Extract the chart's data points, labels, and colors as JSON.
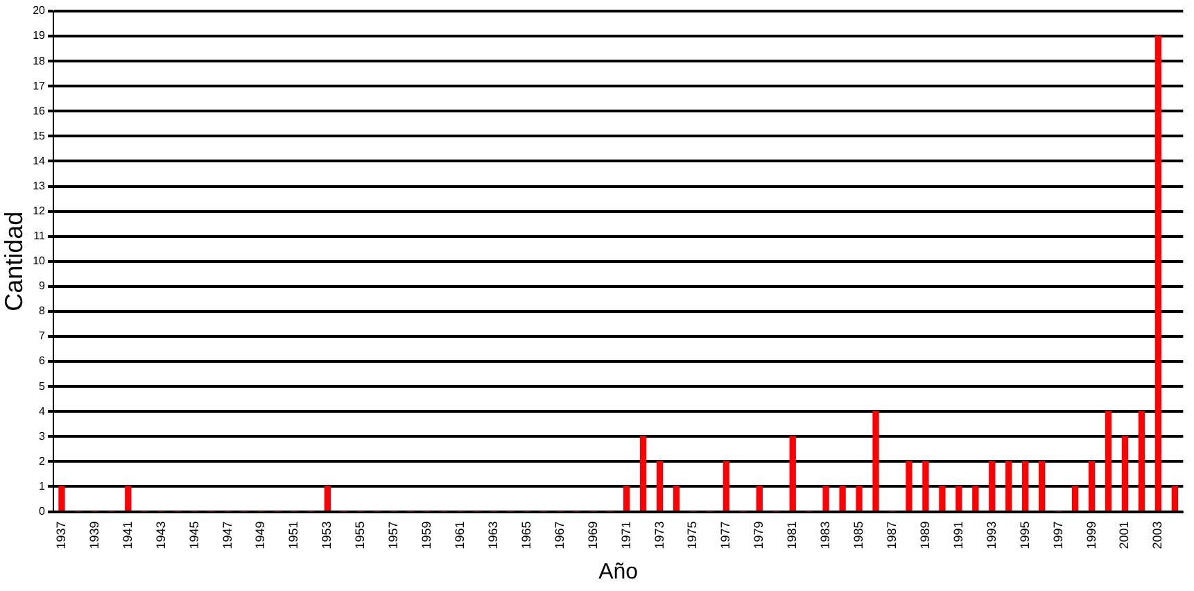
{
  "chart_data": {
    "type": "bar",
    "xlabel": "Año",
    "ylabel": "Cantidad",
    "categories": [
      "1937",
      null,
      "1939",
      null,
      "1941",
      null,
      "1943",
      null,
      "1945",
      null,
      "1947",
      null,
      "1949",
      null,
      "1951",
      null,
      "1953",
      null,
      "1955",
      null,
      "1957",
      null,
      "1959",
      null,
      "1961",
      null,
      "1963",
      null,
      "1965",
      null,
      "1967",
      null,
      "1969",
      null,
      "1971",
      null,
      "1973",
      null,
      "1975",
      null,
      "1977",
      null,
      "1979",
      null,
      "1981",
      null,
      "1983",
      null,
      "1985",
      null,
      "1987",
      null,
      "1989",
      null,
      "1991",
      null,
      "1993",
      null,
      "1995",
      null,
      "1997",
      null,
      "1999",
      null,
      "2001",
      null,
      "2003",
      null
    ],
    "values": [
      1,
      0,
      0,
      0,
      1,
      0,
      0,
      0,
      0,
      0,
      0,
      0,
      0,
      0,
      0,
      0,
      1,
      0,
      0,
      0,
      0,
      0,
      0,
      0,
      0,
      0,
      0,
      0,
      0,
      0,
      0,
      0,
      0,
      0,
      1,
      3,
      2,
      1,
      0,
      0,
      2,
      0,
      1,
      0,
      3,
      0,
      1,
      1,
      1,
      4,
      0,
      2,
      2,
      1,
      1,
      1,
      2,
      2,
      2,
      2,
      0,
      1,
      2,
      4,
      3,
      4,
      19,
      1
    ],
    "color": "#ff0000",
    "ylim": [
      0,
      20
    ],
    "yticks": [
      0,
      1,
      2,
      3,
      4,
      5,
      6,
      7,
      8,
      9,
      10,
      11,
      12,
      13,
      14,
      15,
      16,
      17,
      18,
      19,
      20
    ],
    "grid": "y",
    "legend": false
  }
}
